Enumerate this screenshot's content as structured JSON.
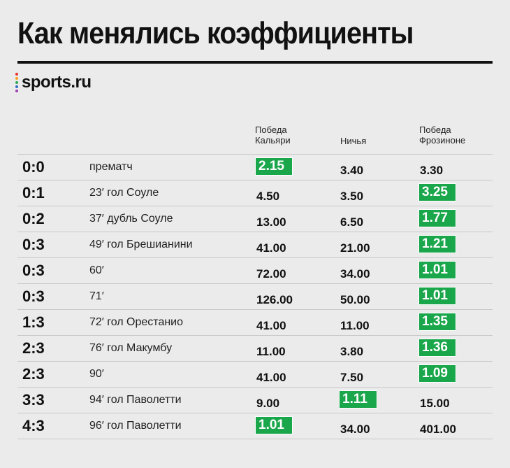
{
  "title": "Как менялись коэффициенты",
  "logo": {
    "text": "sports.ru",
    "dot_colors": [
      "#e7312f",
      "#f7a11a",
      "#2fa84f",
      "#2b6cc4",
      "#9b3fb5"
    ]
  },
  "colors": {
    "highlight": "#1aa64b"
  },
  "chart_data": {
    "type": "table",
    "columns": [
      "",
      "",
      "Победа Кальяри",
      "Ничья",
      "Победа Фрозиноне"
    ],
    "rows": [
      {
        "score": "0:0",
        "event": "прематч",
        "home": "2.15",
        "draw": "3.40",
        "away": "3.30",
        "highlight": "home"
      },
      {
        "score": "0:1",
        "event": "23′ гол Соуле",
        "home": "4.50",
        "draw": "3.50",
        "away": "3.25",
        "highlight": "away"
      },
      {
        "score": "0:2",
        "event": "37′ дубль Соуле",
        "home": "13.00",
        "draw": "6.50",
        "away": "1.77",
        "highlight": "away"
      },
      {
        "score": "0:3",
        "event": "49′ гол Брешианини",
        "home": "41.00",
        "draw": "21.00",
        "away": "1.21",
        "highlight": "away"
      },
      {
        "score": "0:3",
        "event": "60′",
        "home": "72.00",
        "draw": "34.00",
        "away": "1.01",
        "highlight": "away"
      },
      {
        "score": "0:3",
        "event": "71′",
        "home": "126.00",
        "draw": "50.00",
        "away": "1.01",
        "highlight": "away"
      },
      {
        "score": "1:3",
        "event": "72′ гол Орестанио",
        "home": "41.00",
        "draw": "11.00",
        "away": "1.35",
        "highlight": "away"
      },
      {
        "score": "2:3",
        "event": "76′ гол Макумбу",
        "home": "11.00",
        "draw": "3.80",
        "away": "1.36",
        "highlight": "away"
      },
      {
        "score": "2:3",
        "event": "90′",
        "home": "41.00",
        "draw": "7.50",
        "away": "1.09",
        "highlight": "away"
      },
      {
        "score": "3:3",
        "event": "94′ гол Паволетти",
        "home": "9.00",
        "draw": "1.11",
        "away": "15.00",
        "highlight": "draw"
      },
      {
        "score": "4:3",
        "event": "96′ гол Паволетти",
        "home": "1.01",
        "draw": "34.00",
        "away": "401.00",
        "highlight": "home"
      }
    ]
  }
}
